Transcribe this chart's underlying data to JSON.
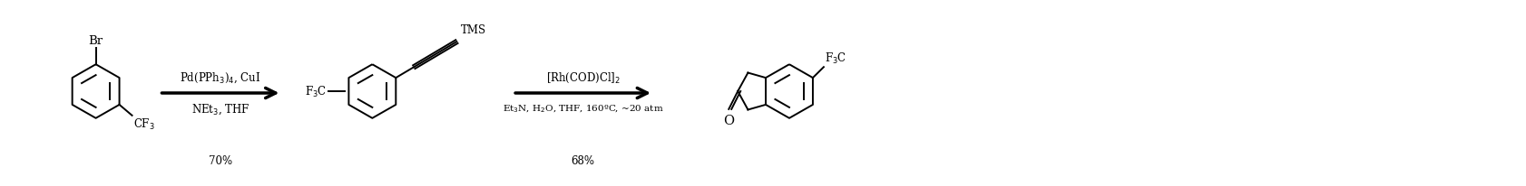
{
  "figsize": [
    16.82,
    2.07
  ],
  "dpi": 100,
  "bg_color": "#ffffff",
  "line_color": "#000000",
  "text_color": "#000000",
  "lw": 1.4,
  "fontsize": 8.5,
  "fontsize_small": 7.5,
  "label1_above": "Pd(PPh$_3$)$_4$, CuI",
  "label1_below": "NEt$_3$, THF",
  "label1_yield": "70%",
  "label2_above": "[Rh(COD)Cl]$_2$",
  "label2_below": "Et$_3$N, H$_2$O, THF, 160ºC, ~20 atm",
  "label2_yield": "68%"
}
